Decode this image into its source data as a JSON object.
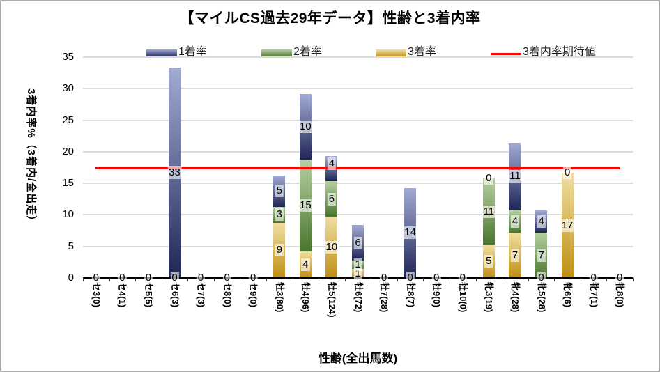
{
  "title": "【マイルCS過去29年データ】性齢と3着内率",
  "y_axis": {
    "title": "3着内率%（3着内/全出走）",
    "ticks": [
      0,
      5,
      10,
      15,
      20,
      25,
      30,
      35
    ],
    "max": 35
  },
  "x_axis": {
    "title": "性齢(全出馬数)"
  },
  "legend": {
    "items": [
      {
        "label": "1着率"
      },
      {
        "label": "2着率"
      },
      {
        "label": "3着率"
      },
      {
        "label": "3着内率期待値"
      }
    ]
  },
  "colors": {
    "win_top": "#a2abd4",
    "win_bottom": "#1f2656",
    "second_top": "#b6d0a0",
    "second_bottom": "#4a752f",
    "third_top": "#f0dfa2",
    "third_bottom": "#be8e13",
    "expected_line": "#ff0000",
    "gridline": "#dcdcdc",
    "axis": "#000000"
  },
  "chart_data": {
    "type": "bar",
    "stacked": true,
    "title": "【マイルCS過去29年データ】性齢と3着内率",
    "xlabel": "性齢(全出馬数)",
    "ylabel": "3着内率%（3着内/全出走）",
    "ylim": [
      0,
      35
    ],
    "grid": true,
    "legend_position": "top",
    "categories": [
      "セ3(0)",
      "セ4(1)",
      "セ5(5)",
      "セ6(3)",
      "セ7(3)",
      "セ8(0)",
      "セ9(0)",
      "牡3(80)",
      "牡4(96)",
      "牡5(124)",
      "牡6(72)",
      "牡7(28)",
      "牡8(7)",
      "牡9(0)",
      "牡10(0)",
      "牝3(19)",
      "牝4(28)",
      "牝5(28)",
      "牝6(6)",
      "牝7(1)",
      "牝8(0)"
    ],
    "series": [
      {
        "name": "1着率",
        "stack_order": "top",
        "values": [
          0,
          0,
          0,
          33.33,
          0,
          0,
          0,
          5.0,
          10.42,
          4.03,
          5.56,
          0,
          14.29,
          0,
          0,
          0,
          10.71,
          3.57,
          0,
          0,
          0
        ]
      },
      {
        "name": "2着率",
        "stack_order": "middle",
        "values": [
          0,
          0,
          0,
          0,
          0,
          0,
          0,
          2.5,
          14.58,
          5.65,
          1.39,
          0,
          0,
          0,
          0,
          10.53,
          3.57,
          7.14,
          0,
          0,
          0
        ]
      },
      {
        "name": "3着率",
        "stack_order": "bottom",
        "values": [
          0,
          0,
          0,
          0,
          0,
          0,
          0,
          8.75,
          4.17,
          9.68,
          1.39,
          0,
          0,
          0,
          0,
          5.26,
          7.14,
          0,
          16.67,
          0,
          0
        ]
      }
    ],
    "line_series": {
      "name": "3着内率期待値",
      "value": 17.4
    },
    "data_labels": [
      [
        {
          "t": "0",
          "v": 0
        }
      ],
      [
        {
          "t": "0",
          "v": 0
        }
      ],
      [
        {
          "t": "0",
          "v": 0
        }
      ],
      [
        {
          "t": "0",
          "v": 0
        },
        {
          "t": "33",
          "v": 16.67
        }
      ],
      [
        {
          "t": "0",
          "v": 0
        }
      ],
      [
        {
          "t": "0",
          "v": 0
        }
      ],
      [
        {
          "t": "0",
          "v": 0
        }
      ],
      [
        {
          "t": "9",
          "v": 4.38
        },
        {
          "t": "3",
          "v": 10.0
        },
        {
          "t": "5",
          "v": 13.75
        }
      ],
      [
        {
          "t": "4",
          "v": 2.08
        },
        {
          "t": "15",
          "v": 11.46
        },
        {
          "t": "10",
          "v": 23.96
        }
      ],
      [
        {
          "t": "10",
          "v": 4.84
        },
        {
          "t": "6",
          "v": 12.5
        },
        {
          "t": "4",
          "v": 18.15
        }
      ],
      [
        {
          "t": "1",
          "v": 0.69
        },
        {
          "t": "1",
          "v": 2.08
        },
        {
          "t": "6",
          "v": 5.56
        }
      ],
      [
        {
          "t": "0",
          "v": 0
        }
      ],
      [
        {
          "t": "0",
          "v": 0
        },
        {
          "t": "14",
          "v": 7.14
        }
      ],
      [
        {
          "t": "0",
          "v": 0
        }
      ],
      [
        {
          "t": "0",
          "v": 0
        }
      ],
      [
        {
          "t": "5",
          "v": 2.63
        },
        {
          "t": "11",
          "v": 10.53
        },
        {
          "t": "0",
          "v": 15.79
        }
      ],
      [
        {
          "t": "7",
          "v": 3.57
        },
        {
          "t": "4",
          "v": 8.93
        },
        {
          "t": "11",
          "v": 16.07
        }
      ],
      [
        {
          "t": "0",
          "v": 0
        },
        {
          "t": "7",
          "v": 3.57
        },
        {
          "t": "4",
          "v": 8.93
        }
      ],
      [
        {
          "t": "17",
          "v": 8.33
        },
        {
          "t": "0",
          "v": 16.67
        }
      ],
      [
        {
          "t": "0",
          "v": 0
        }
      ],
      [
        {
          "t": "0",
          "v": 0
        }
      ]
    ]
  }
}
